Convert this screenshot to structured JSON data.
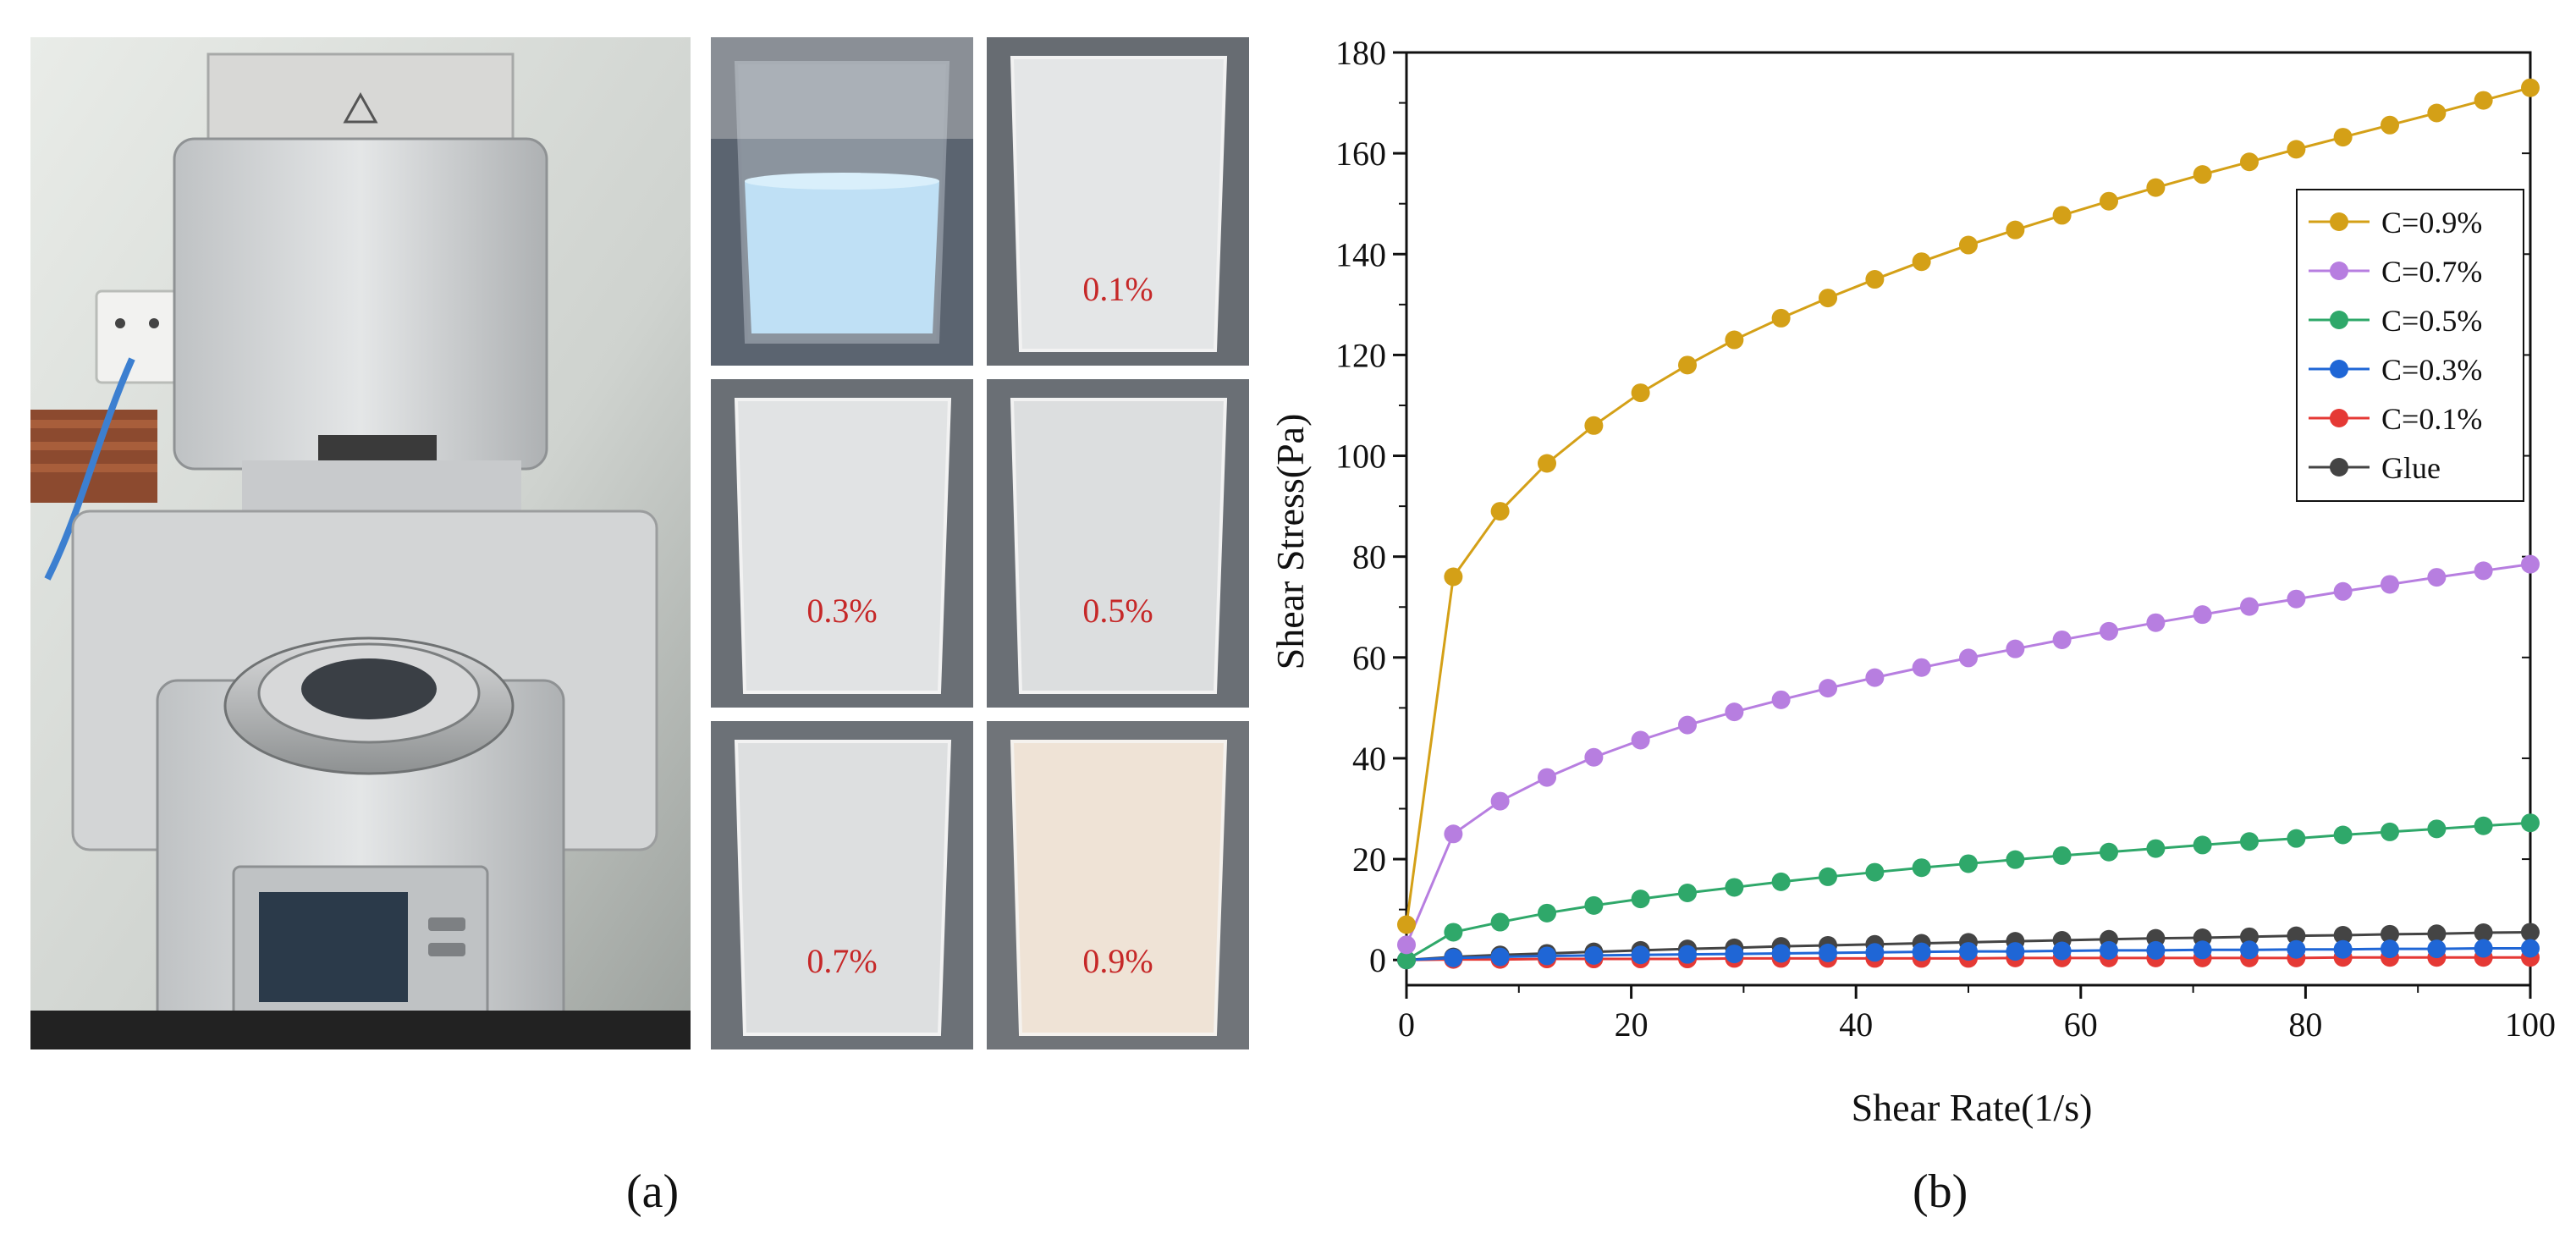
{
  "captions": {
    "a": "(a)",
    "b": "(b)"
  },
  "photos": {
    "beaker_labels": [
      "",
      "0.1%",
      "0.3%",
      "0.5%",
      "0.7%",
      "0.9%"
    ]
  },
  "colors": {
    "c09": "#d4a017",
    "c07": "#b77ee0",
    "c05": "#2fa86a",
    "c03": "#1f66d6",
    "c01": "#e53935",
    "glue": "#444444",
    "pct_text": "#c62828"
  },
  "chart_data": {
    "type": "line",
    "xlabel": "Shear Rate(1/s)",
    "ylabel": "Shear Stress(Pa)",
    "xlim": [
      0,
      100
    ],
    "ylim": [
      -5,
      180
    ],
    "xticks": [
      0,
      20,
      40,
      60,
      80,
      100
    ],
    "yticks": [
      0,
      20,
      40,
      60,
      80,
      100,
      120,
      140,
      160,
      180
    ],
    "grid": false,
    "legend_position": "top-right",
    "x": [
      0,
      4.17,
      8.33,
      12.5,
      16.67,
      20.83,
      25,
      29.17,
      33.33,
      37.5,
      41.67,
      45.83,
      50,
      54.17,
      58.33,
      62.5,
      66.67,
      70.83,
      75,
      79.17,
      83.33,
      87.5,
      91.67,
      95.83,
      100
    ],
    "series": [
      {
        "name": "C=0.9%",
        "color": "#d4a017",
        "values": [
          7,
          76,
          89,
          98.5,
          106,
          112.5,
          118,
          123,
          127.3,
          131.3,
          135,
          138.5,
          141.8,
          144.8,
          147.7,
          150.5,
          153.2,
          155.8,
          158.3,
          160.8,
          163.2,
          165.6,
          168,
          170.5,
          173
        ]
      },
      {
        "name": "C=0.7%",
        "color": "#b77ee0",
        "values": [
          3,
          25,
          31.5,
          36.2,
          40.2,
          43.6,
          46.6,
          49.2,
          51.6,
          53.9,
          56,
          58,
          59.9,
          61.7,
          63.5,
          65.2,
          66.9,
          68.5,
          70.1,
          71.6,
          73.1,
          74.5,
          75.9,
          77.2,
          78.5
        ]
      },
      {
        "name": "C=0.5%",
        "color": "#2fa86a",
        "values": [
          0,
          5.5,
          7.5,
          9.3,
          10.8,
          12.1,
          13.3,
          14.4,
          15.5,
          16.5,
          17.4,
          18.3,
          19.1,
          19.9,
          20.7,
          21.4,
          22.1,
          22.8,
          23.5,
          24.1,
          24.8,
          25.4,
          26,
          26.6,
          27.2
        ]
      },
      {
        "name": "C=0.3%",
        "color": "#1f66d6",
        "values": [
          0,
          0.4,
          0.6,
          0.8,
          0.9,
          1.0,
          1.1,
          1.2,
          1.3,
          1.4,
          1.5,
          1.6,
          1.7,
          1.7,
          1.8,
          1.9,
          1.9,
          2.0,
          2.0,
          2.1,
          2.1,
          2.2,
          2.2,
          2.3,
          2.3
        ]
      },
      {
        "name": "C=0.1%",
        "color": "#e53935",
        "values": [
          0,
          0.1,
          0.1,
          0.2,
          0.2,
          0.2,
          0.2,
          0.3,
          0.3,
          0.3,
          0.3,
          0.3,
          0.3,
          0.4,
          0.4,
          0.4,
          0.4,
          0.4,
          0.4,
          0.4,
          0.5,
          0.5,
          0.5,
          0.5,
          0.5
        ]
      },
      {
        "name": "Glue",
        "color": "#444444",
        "values": [
          0,
          0.6,
          1.0,
          1.3,
          1.6,
          1.9,
          2.2,
          2.4,
          2.7,
          2.9,
          3.1,
          3.3,
          3.5,
          3.7,
          3.9,
          4.1,
          4.3,
          4.4,
          4.6,
          4.8,
          4.9,
          5.1,
          5.2,
          5.4,
          5.5
        ]
      }
    ]
  }
}
